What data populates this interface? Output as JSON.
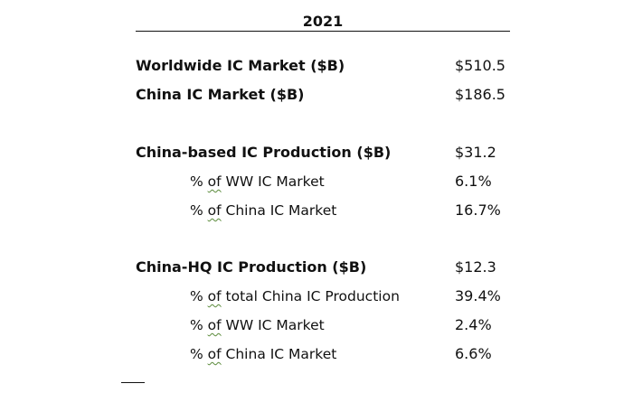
{
  "header": {
    "year": "2021"
  },
  "rows": [
    {
      "label": "Worldwide IC Market ($B)",
      "value": "$510.5"
    },
    {
      "label": "China IC Market ($B)",
      "value": "$186.5"
    },
    {
      "label": "China-based IC Production ($B)",
      "value": "$31.2"
    },
    {
      "prefix": "% ",
      "of": "of",
      "rest": " WW IC Market",
      "value": "6.1%"
    },
    {
      "prefix": "% ",
      "of": "of",
      "rest": " China IC Market",
      "value": "16.7%"
    },
    {
      "label": "China-HQ IC Production ($B)",
      "value": "$12.3"
    },
    {
      "prefix": "% ",
      "of": "of",
      "rest": " total China IC Production",
      "value": "39.4%"
    },
    {
      "prefix": "% ",
      "of": "of",
      "rest": " WW IC Market",
      "value": "2.4%"
    },
    {
      "prefix": "% ",
      "of": "of",
      "rest": " China IC Market",
      "value": "6.6%"
    }
  ]
}
